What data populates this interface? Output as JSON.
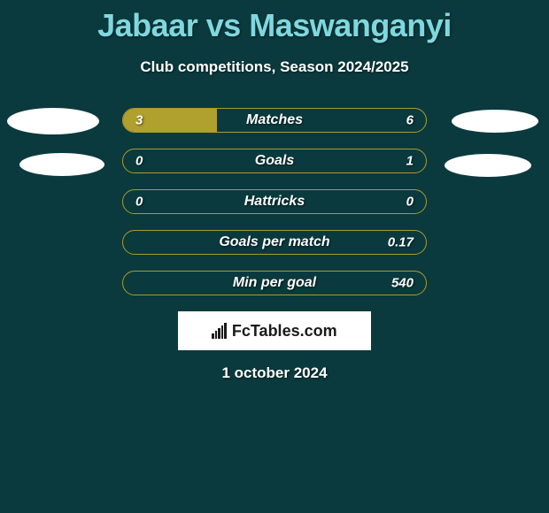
{
  "title": "Jabaar vs Maswanganyi",
  "subtitle": "Club competitions, Season 2024/2025",
  "date": "1 october 2024",
  "branding": "FcTables.com",
  "colors": {
    "background": "#0a3a3d",
    "title": "#7fd8df",
    "bar_fill": "#b0a02e",
    "bar_border": "#ad9b2b",
    "text": "#ffffff",
    "badge": "#ffffff",
    "branding_bg": "#ffffff",
    "branding_text": "#1a1a1a"
  },
  "stats": [
    {
      "label": "Matches",
      "left_value": "3",
      "right_value": "6",
      "left_pct": 31,
      "right_pct": 0
    },
    {
      "label": "Goals",
      "left_value": "0",
      "right_value": "1",
      "left_pct": 0,
      "right_pct": 0
    },
    {
      "label": "Hattricks",
      "left_value": "0",
      "right_value": "0",
      "left_pct": 0,
      "right_pct": 0
    },
    {
      "label": "Goals per match",
      "left_value": "",
      "right_value": "0.17",
      "left_pct": 0,
      "right_pct": 0
    },
    {
      "label": "Min per goal",
      "left_value": "",
      "right_value": "540",
      "left_pct": 0,
      "right_pct": 0
    }
  ]
}
